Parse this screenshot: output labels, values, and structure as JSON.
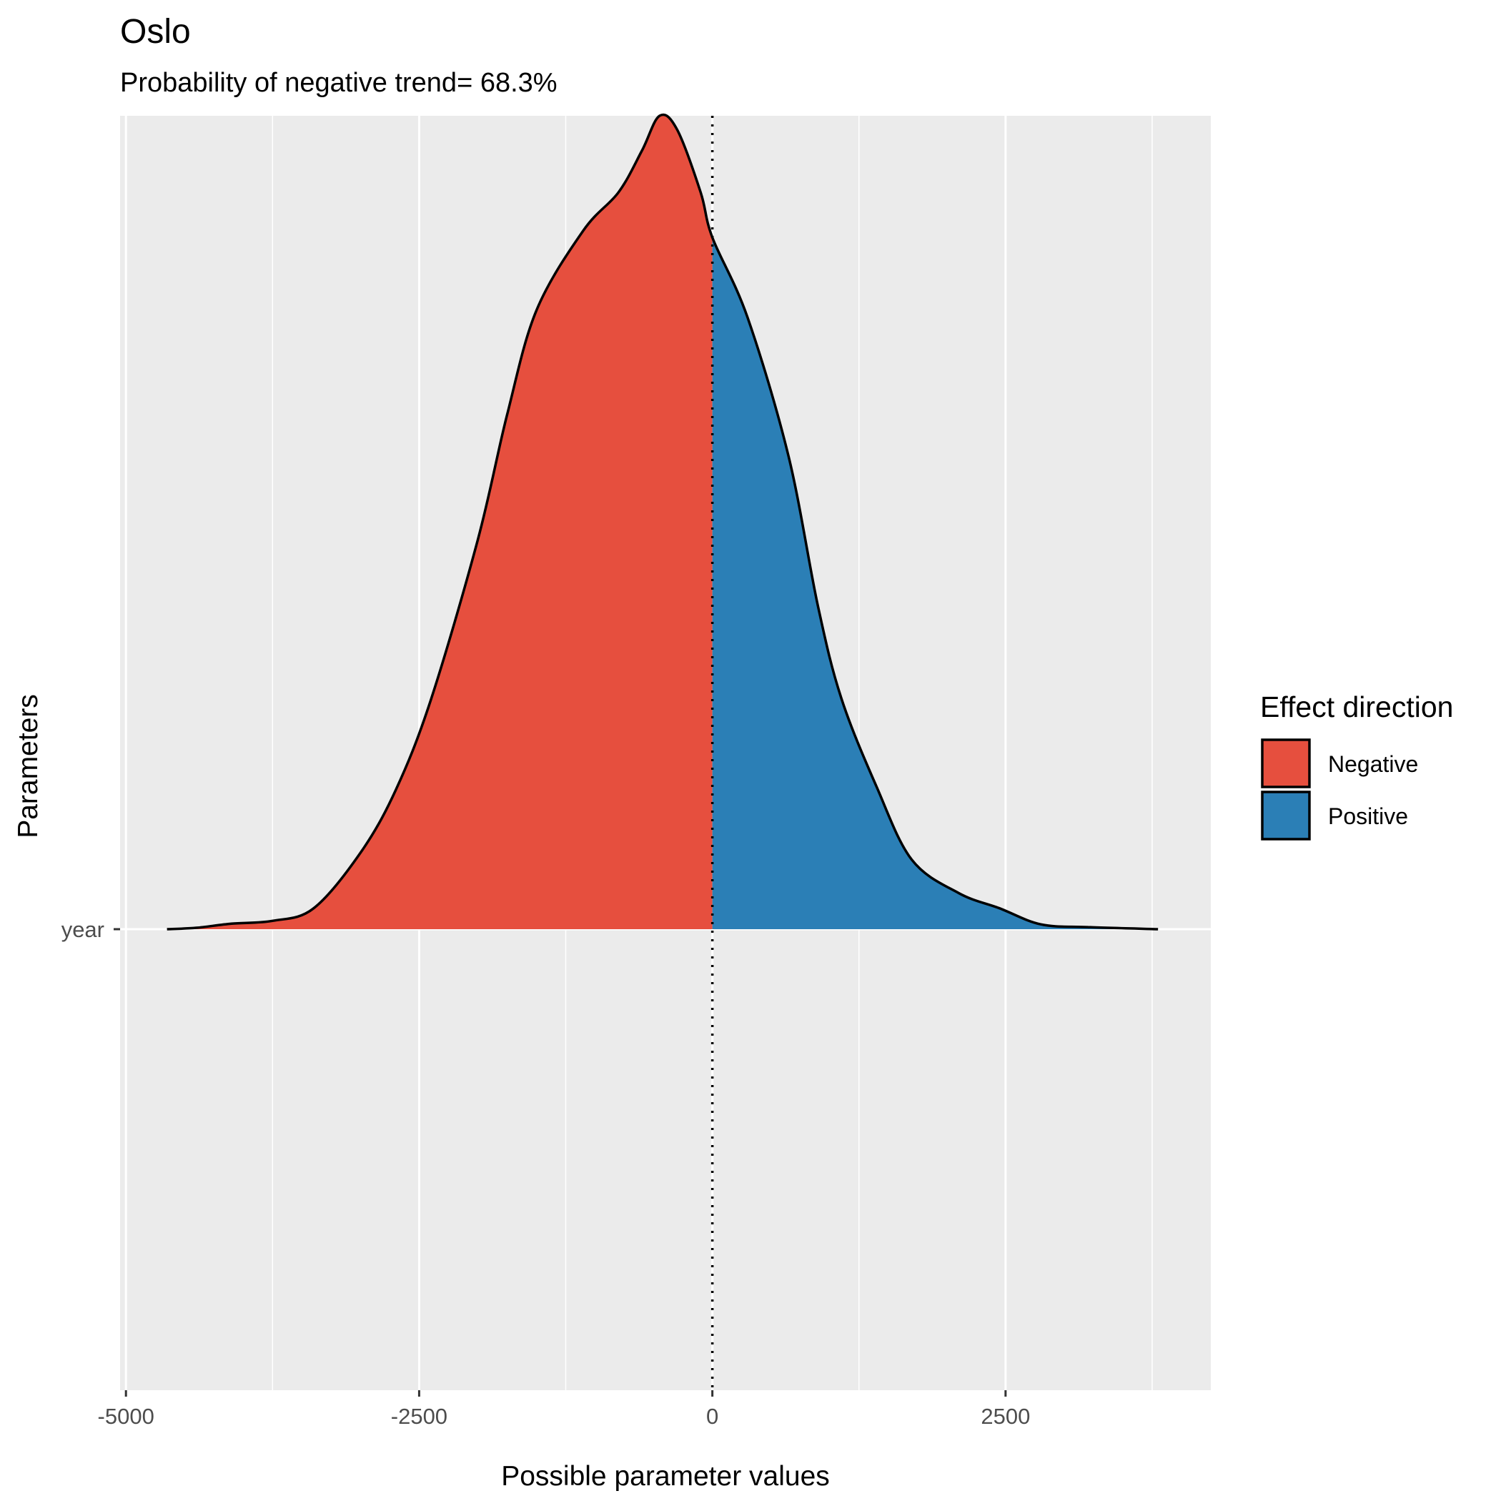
{
  "chart_data": {
    "type": "area",
    "title": "Oslo",
    "subtitle": "Probability of negative trend= 68.3%",
    "xlabel": "Possible parameter values",
    "ylabel": "Parameters",
    "xlim": [
      -5050,
      4250
    ],
    "x_ticks": [
      -5000,
      -2500,
      0,
      2500
    ],
    "x_tick_labels": [
      "-5000",
      "-2500",
      "0",
      "2500"
    ],
    "y_categories": [
      "year"
    ],
    "grid": true,
    "legend": {
      "title": "Effect direction",
      "position": "right",
      "entries": [
        {
          "label": "Negative",
          "color": "#e64f3e"
        },
        {
          "label": "Positive",
          "color": "#2b7fb6"
        }
      ]
    },
    "reference_line": {
      "x": 0,
      "style": "dotted"
    },
    "density": {
      "category": "year",
      "x": [
        -4650,
        -4400,
        -4100,
        -3750,
        -3400,
        -3000,
        -2700,
        -2400,
        -2000,
        -1750,
        -1500,
        -1100,
        -800,
        -600,
        -450,
        -300,
        -100,
        0,
        300,
        650,
        900,
        1100,
        1400,
        1700,
        2100,
        2450,
        2800,
        3200,
        3800
      ],
      "density": [
        0.0,
        0.002,
        0.008,
        0.012,
        0.03,
        0.11,
        0.2,
        0.33,
        0.56,
        0.74,
        0.89,
        1.005,
        1.06,
        1.12,
        1.17,
        1.15,
        1.06,
        0.995,
        0.88,
        0.68,
        0.465,
        0.332,
        0.205,
        0.1,
        0.052,
        0.03,
        0.007,
        0.003,
        0.0
      ],
      "density_max": 1.17
    }
  }
}
